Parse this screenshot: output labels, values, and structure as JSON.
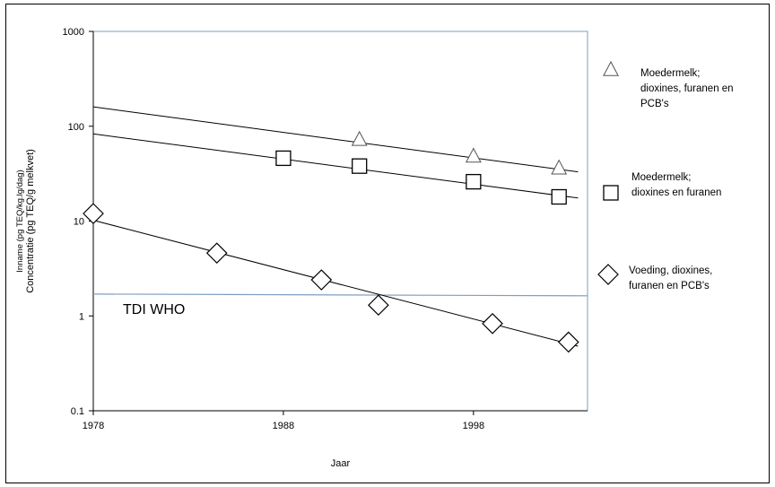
{
  "chart_data": {
    "type": "scatter",
    "xlabel": "Jaar",
    "ylabel_lines": [
      "Inname (pg TEQ/kg.lg/dag)",
      "Concentratie (pg TEQ/g melkvet)"
    ],
    "x_ticks": [
      "1978",
      "1988",
      "1998"
    ],
    "y_ticks": [
      "0.1",
      "1",
      "10",
      "100",
      "1000"
    ],
    "xlim": [
      1978,
      2004
    ],
    "ylim": [
      0.1,
      1000
    ],
    "y_scale": "log",
    "grid": false,
    "legend_position": "right",
    "series": [
      {
        "name": "Moedermelk; dioxines, furanen en PCB's",
        "name_lines": [
          "Moedermelk;",
          "dioxines, furanen en",
          "PCB's"
        ],
        "marker": "triangle",
        "points": [
          [
            1992,
            72
          ],
          [
            1998,
            48
          ],
          [
            2002.5,
            36
          ]
        ],
        "trend": [
          [
            1978,
            160
          ],
          [
            2003.5,
            33
          ]
        ]
      },
      {
        "name": "Moedermelk; dioxines en furanen",
        "name_lines": [
          "Moedermelk;",
          "dioxines en furanen"
        ],
        "marker": "square",
        "points": [
          [
            1988,
            46
          ],
          [
            1992,
            38
          ],
          [
            1998,
            26
          ],
          [
            2002.5,
            18
          ]
        ],
        "trend": [
          [
            1978,
            83
          ],
          [
            2003.5,
            17.5
          ]
        ]
      },
      {
        "name": "Voeding, dioxines, furanen en PCB's",
        "name_lines": [
          "Voeding, dioxines,",
          "furanen en PCB's"
        ],
        "marker": "diamond",
        "points": [
          [
            1978,
            12
          ],
          [
            1984.5,
            4.6
          ],
          [
            1990,
            2.4
          ],
          [
            1993,
            1.3
          ],
          [
            1999,
            0.83
          ],
          [
            2003,
            0.53
          ]
        ],
        "trend": [
          [
            1978,
            10.2
          ],
          [
            2003.5,
            0.48
          ]
        ]
      }
    ],
    "reference_line": {
      "label": "TDI WHO",
      "value": 1.7,
      "end_value": 1.63,
      "color": "#7e9fbf"
    }
  }
}
